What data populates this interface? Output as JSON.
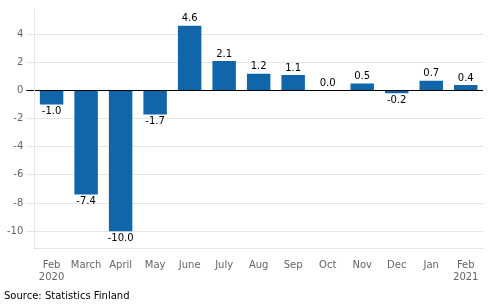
{
  "chart_data": {
    "type": "bar",
    "categories": [
      "Feb\n2020",
      "March",
      "April",
      "May",
      "June",
      "July",
      "Aug",
      "Sep",
      "Oct",
      "Nov",
      "Dec",
      "Jan",
      "Feb\n2021"
    ],
    "values": [
      -1.0,
      -7.4,
      -10.0,
      -1.7,
      4.6,
      2.1,
      1.2,
      1.1,
      0.0,
      0.5,
      -0.2,
      0.7,
      0.4
    ],
    "value_labels": [
      "-1.0",
      "-7.4",
      "-10.0",
      "-1.7",
      "4.6",
      "2.1",
      "1.2",
      "1.1",
      "0.0",
      "0.5",
      "-0.2",
      "0.7",
      "0.4"
    ],
    "data_labels": true,
    "color": "#1166aa",
    "ylim": [
      -11.2,
      5.8
    ],
    "yticks": [
      -10,
      -8,
      -6,
      -4,
      -2,
      0,
      2,
      4
    ],
    "grid": true,
    "annotations": [
      "Source: Statistics Finland"
    ]
  }
}
